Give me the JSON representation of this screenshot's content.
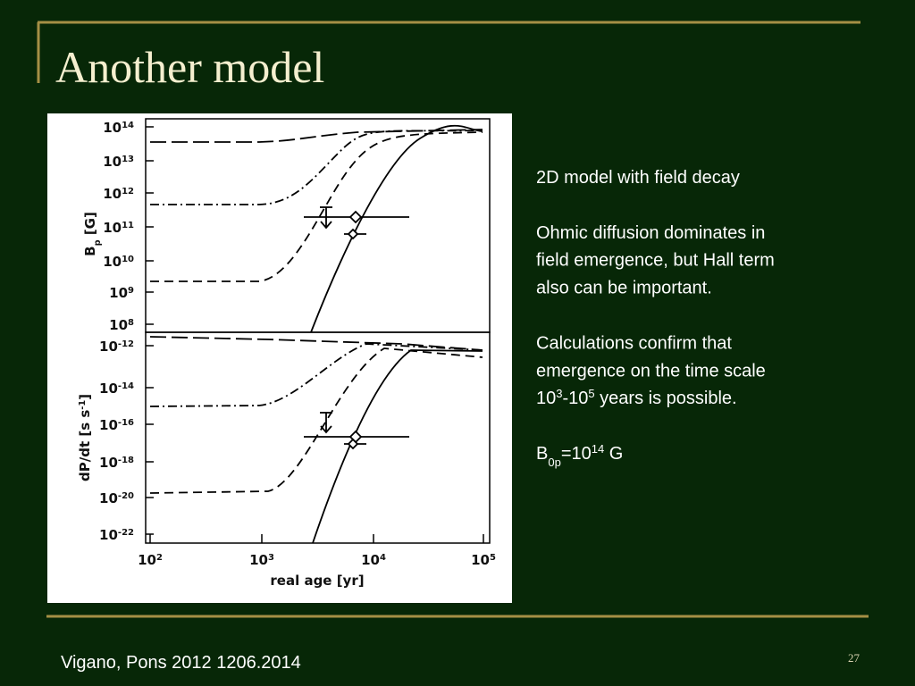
{
  "header": {
    "title": "Another model"
  },
  "figure": {
    "tick_base": "10",
    "top_panel": {
      "ylabel": [
        {
          "text": "B"
        },
        {
          "sub": "p"
        },
        {
          "text": " [G]"
        }
      ],
      "y_exponents": [
        "14",
        "13",
        "12",
        "11",
        "10",
        "9",
        "8"
      ]
    },
    "bottom_panel": {
      "ylabel": [
        {
          "text": "dP/dt [s s"
        },
        {
          "sup": "-1"
        },
        {
          "text": "]"
        }
      ],
      "y_exponents": [
        "-12",
        "-14",
        "-16",
        "-18",
        "-20",
        "-22"
      ]
    },
    "x_exponents": [
      "2",
      "3",
      "4",
      "5"
    ],
    "xlabel": "real age [yr]"
  },
  "body": [
    [
      [
        {
          "text": "2D model with field decay"
        }
      ]
    ],
    [
      [
        {
          "text": "Ohmic diffusion dominates in"
        }
      ],
      [
        {
          "text": "field emergence, but Hall term"
        }
      ],
      [
        {
          "text": "also can be important."
        }
      ]
    ],
    [
      [
        {
          "text": "Calculations confirm that"
        }
      ],
      [
        {
          "text": "emergence on the time scale"
        }
      ],
      [
        {
          "text": "10"
        },
        {
          "sup": "3"
        },
        {
          "text": "-10"
        },
        {
          "sup": "5"
        },
        {
          "text": " years is possible."
        }
      ]
    ],
    [
      [
        {
          "text": "B"
        },
        {
          "sub": "0p"
        },
        {
          "text": "=10"
        },
        {
          "sup": "14"
        },
        {
          "text": " G"
        }
      ]
    ]
  ],
  "footer": {
    "citation": "Vigano, Pons 2012 1206.2014",
    "page_number": "27"
  }
}
